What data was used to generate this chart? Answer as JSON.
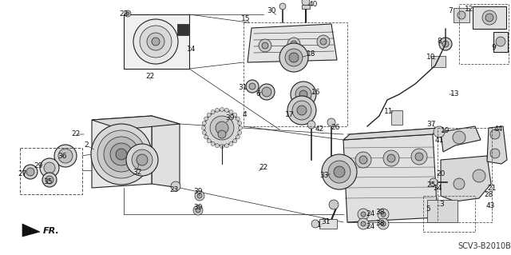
{
  "bg_color": "#ffffff",
  "diagram_code": "SCV3-B2010B",
  "label_fontsize": 6.5,
  "label_color": "#111111",
  "diagram_bg": "#ffffff",
  "code_fontsize": 7.0,
  "figsize": [
    6.4,
    3.19
  ],
  "dpi": 100
}
